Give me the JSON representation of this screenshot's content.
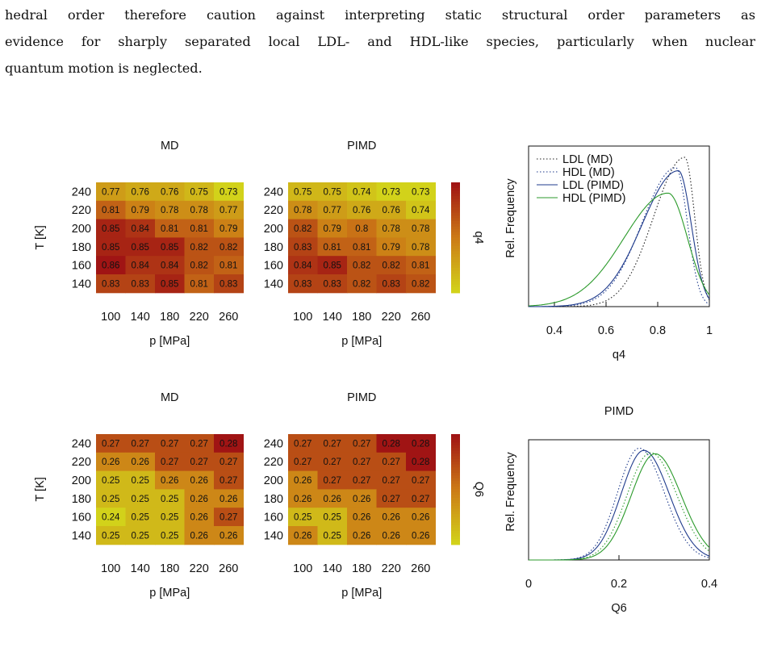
{
  "paragraph": {
    "lines": [
      "hedral order therefore caution against interpreting static structural order parameters as",
      "evidence for sharply separated local LDL- and HDL-like species, particularly when nuclear",
      "quantum motion is neglected."
    ]
  },
  "colors": {
    "low": "#d2d21a",
    "mid": "#cc7a16",
    "high": "#a01414",
    "md_line": "#222222",
    "pimd_ldl": "#1f3b8c",
    "pimd_hdl": "#2b9a2b"
  },
  "chart_data": [
    {
      "type": "heatmap",
      "id": "q4-md",
      "title": "MD",
      "xlabel": "p [MPa]",
      "ylabel": "T [K]",
      "x": [
        "100",
        "140",
        "180",
        "220",
        "260"
      ],
      "y": [
        "240",
        "220",
        "200",
        "180",
        "160",
        "140"
      ],
      "values": [
        [
          0.77,
          0.76,
          0.76,
          0.75,
          0.73
        ],
        [
          0.81,
          0.79,
          0.78,
          0.78,
          0.77
        ],
        [
          0.85,
          0.84,
          0.81,
          0.81,
          0.79
        ],
        [
          0.85,
          0.85,
          0.85,
          0.82,
          0.82
        ],
        [
          0.86,
          0.84,
          0.84,
          0.82,
          0.81
        ],
        [
          0.83,
          0.83,
          0.85,
          0.81,
          0.83
        ]
      ],
      "color_range": [
        0.73,
        0.86
      ]
    },
    {
      "type": "heatmap",
      "id": "q4-pimd",
      "title": "PIMD",
      "xlabel": "p [MPa]",
      "colorbar_label": "q4",
      "x": [
        "100",
        "140",
        "180",
        "220",
        "260"
      ],
      "y": [
        "240",
        "220",
        "200",
        "180",
        "160",
        "140"
      ],
      "values": [
        [
          0.75,
          0.75,
          0.74,
          0.73,
          0.73
        ],
        [
          0.78,
          0.77,
          0.76,
          0.76,
          0.74
        ],
        [
          0.82,
          0.79,
          0.8,
          0.78,
          0.78
        ],
        [
          0.83,
          0.81,
          0.81,
          0.79,
          0.78
        ],
        [
          0.84,
          0.85,
          0.82,
          0.82,
          0.81
        ],
        [
          0.83,
          0.83,
          0.82,
          0.83,
          0.82
        ]
      ],
      "color_range": [
        0.73,
        0.86
      ]
    },
    {
      "type": "line",
      "id": "q4-dist",
      "xlabel": "q4",
      "ylabel": "Rel. Frequency",
      "xlim": [
        0.3,
        1.0
      ],
      "xticks": [
        "0.4",
        "0.6",
        "0.8",
        "1"
      ],
      "legend": "top-left",
      "series": [
        {
          "name": "LDL (MD)",
          "style": "dotted",
          "color": "#222222",
          "peak": 0.905,
          "height": 1.0,
          "w_left": 0.12,
          "w_right": 0.038
        },
        {
          "name": "HDL (MD)",
          "style": "dotted",
          "color": "#1f3b8c",
          "peak": 0.87,
          "height": 0.93,
          "w_left": 0.13,
          "w_right": 0.045
        },
        {
          "name": "LDL (PIMD)",
          "style": "solid",
          "color": "#1f3b8c",
          "peak": 0.88,
          "height": 0.91,
          "w_left": 0.14,
          "w_right": 0.05
        },
        {
          "name": "HDL (PIMD)",
          "style": "solid",
          "color": "#2b9a2b",
          "peak": 0.84,
          "height": 0.76,
          "w_left": 0.17,
          "w_right": 0.075
        }
      ]
    },
    {
      "type": "heatmap",
      "id": "q6-md",
      "title": "MD",
      "xlabel": "p [MPa]",
      "ylabel": "T [K]",
      "x": [
        "100",
        "140",
        "180",
        "220",
        "260"
      ],
      "y": [
        "240",
        "220",
        "200",
        "180",
        "160",
        "140"
      ],
      "values": [
        [
          0.27,
          0.27,
          0.27,
          0.27,
          0.28
        ],
        [
          0.26,
          0.26,
          0.27,
          0.27,
          0.27
        ],
        [
          0.25,
          0.25,
          0.26,
          0.26,
          0.27
        ],
        [
          0.25,
          0.25,
          0.25,
          0.26,
          0.26
        ],
        [
          0.24,
          0.25,
          0.25,
          0.26,
          0.27
        ],
        [
          0.25,
          0.25,
          0.25,
          0.26,
          0.26
        ]
      ],
      "color_range": [
        0.245,
        0.28
      ]
    },
    {
      "type": "heatmap",
      "id": "q6-pimd",
      "title": "PIMD",
      "xlabel": "p [MPa]",
      "colorbar_label": "Q6",
      "x": [
        "100",
        "140",
        "180",
        "220",
        "260"
      ],
      "y": [
        "240",
        "220",
        "200",
        "180",
        "160",
        "140"
      ],
      "values": [
        [
          0.27,
          0.27,
          0.27,
          0.28,
          0.28
        ],
        [
          0.27,
          0.27,
          0.27,
          0.27,
          0.28
        ],
        [
          0.26,
          0.27,
          0.27,
          0.27,
          0.27
        ],
        [
          0.26,
          0.26,
          0.26,
          0.27,
          0.27
        ],
        [
          0.25,
          0.25,
          0.26,
          0.26,
          0.26
        ],
        [
          0.26,
          0.25,
          0.26,
          0.26,
          0.26
        ]
      ],
      "color_range": [
        0.245,
        0.28
      ]
    },
    {
      "type": "line",
      "id": "q6-dist",
      "title": "PIMD",
      "xlabel": "Q6",
      "ylabel": "Rel. Frequency",
      "xlim": [
        0.0,
        0.4
      ],
      "xticks": [
        "0",
        "0.2",
        "0.4"
      ],
      "series": [
        {
          "style": "dotted",
          "color": "#1f3b8c",
          "peak": 0.245,
          "height": 1.0,
          "w_left": 0.048,
          "w_right": 0.055
        },
        {
          "style": "solid",
          "color": "#1f3b8c",
          "peak": 0.255,
          "height": 0.98,
          "w_left": 0.05,
          "w_right": 0.056
        },
        {
          "style": "dotted",
          "color": "#2b9a2b",
          "peak": 0.27,
          "height": 0.96,
          "w_left": 0.052,
          "w_right": 0.058
        },
        {
          "style": "solid",
          "color": "#2b9a2b",
          "peak": 0.28,
          "height": 0.95,
          "w_left": 0.053,
          "w_right": 0.058
        }
      ]
    }
  ]
}
